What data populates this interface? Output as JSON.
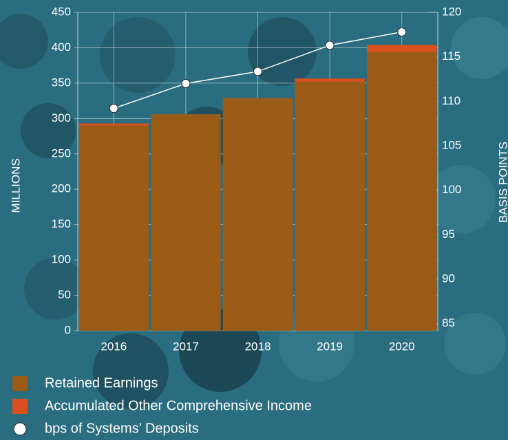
{
  "chart_data": {
    "type": "bar",
    "categories": [
      "2016",
      "2017",
      "2018",
      "2019",
      "2020"
    ],
    "series": [
      {
        "name": "Retained Earnings",
        "color": "#9a5b17",
        "values": [
          290,
          306,
          329,
          352,
          394
        ]
      },
      {
        "name": "Accumulated Other Comprehensive Income",
        "color": "#d9501e",
        "values": [
          3,
          0,
          0,
          4.5,
          10
        ]
      },
      {
        "name": "bps of Systems’ Deposits",
        "type": "line",
        "axis": "y2",
        "color": "#ffffff",
        "values": [
          109.2,
          112.0,
          113.35,
          116.3,
          117.8
        ]
      }
    ],
    "ylabel": "MILLIONS",
    "y2label": "BASIS POINTS",
    "ylim": [
      0,
      450
    ],
    "yticks": [
      0,
      50,
      100,
      150,
      200,
      250,
      300,
      350,
      400,
      450
    ],
    "y2lim": [
      84.2,
      120
    ],
    "y2ticks": [
      85,
      90,
      95,
      100,
      105,
      110,
      115,
      120
    ],
    "grid": true,
    "stacked": true,
    "legend": "bottom-left"
  }
}
